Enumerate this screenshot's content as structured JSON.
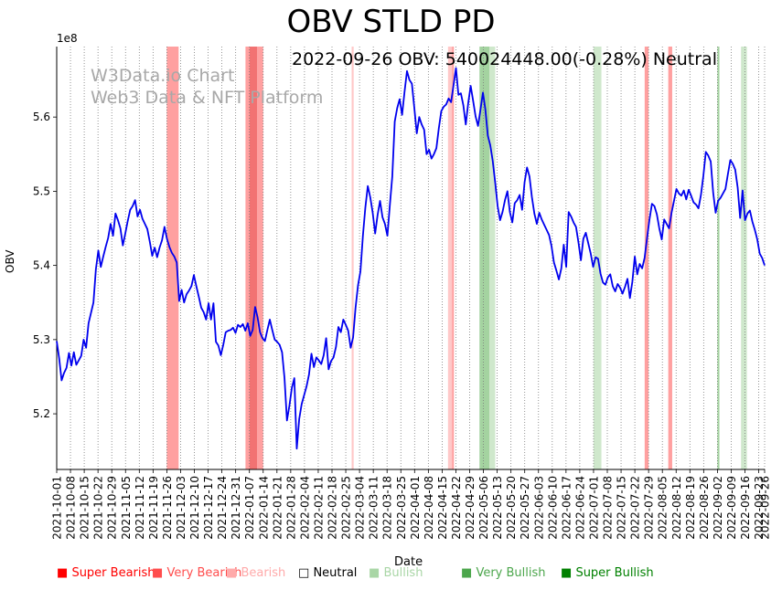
{
  "chart_data": {
    "type": "line",
    "title": "OBV STLD PD",
    "latest_label": "2022-09-26 OBV: 540024448.00(-0.28%) Neutral",
    "watermark": [
      "W3Data.io Chart",
      "Web3 Data & NFT Platform"
    ],
    "xlabel": "Date",
    "ylabel": "OBV",
    "y_scale_label": "1e8",
    "ylim": [
      5.125,
      5.695
    ],
    "y_ticks": [
      5.2,
      5.3,
      5.4,
      5.5,
      5.6
    ],
    "y_tick_labels": [
      "5.2",
      "5.3",
      "5.4",
      "5.5",
      "5.6"
    ],
    "x_range": [
      "2021-10-01",
      "2022-09-26"
    ],
    "x_tick_labels": [
      "2021-10-01",
      "2021-10-08",
      "2021-10-15",
      "2021-10-22",
      "2021-10-29",
      "2021-11-05",
      "2021-11-12",
      "2021-11-19",
      "2021-11-26",
      "2021-12-03",
      "2021-12-10",
      "2021-12-17",
      "2021-12-24",
      "2021-12-31",
      "2022-01-07",
      "2022-01-14",
      "2022-01-21",
      "2022-01-28",
      "2022-02-04",
      "2022-02-11",
      "2022-02-18",
      "2022-02-25",
      "2022-03-04",
      "2022-03-11",
      "2022-03-18",
      "2022-03-25",
      "2022-04-01",
      "2022-04-08",
      "2022-04-15",
      "2022-04-22",
      "2022-04-29",
      "2022-05-06",
      "2022-05-13",
      "2022-05-20",
      "2022-05-27",
      "2022-06-03",
      "2022-06-10",
      "2022-06-17",
      "2022-06-24",
      "2022-07-01",
      "2022-07-08",
      "2022-07-15",
      "2022-07-22",
      "2022-07-29",
      "2022-08-05",
      "2022-08-12",
      "2022-08-19",
      "2022-08-26",
      "2022-09-02",
      "2022-09-09",
      "2022-09-16",
      "2022-09-23",
      "2022-09-26"
    ],
    "series": [
      {
        "name": "OBV",
        "color": "#0000ee",
        "y": [
          5.298,
          5.275,
          5.245,
          5.255,
          5.262,
          5.282,
          5.265,
          5.283,
          5.266,
          5.272,
          5.278,
          5.3,
          5.289,
          5.322,
          5.336,
          5.35,
          5.395,
          5.42,
          5.398,
          5.412,
          5.425,
          5.437,
          5.456,
          5.44,
          5.47,
          5.461,
          5.45,
          5.427,
          5.443,
          5.46,
          5.475,
          5.48,
          5.488,
          5.466,
          5.475,
          5.463,
          5.456,
          5.449,
          5.432,
          5.413,
          5.424,
          5.411,
          5.424,
          5.434,
          5.452,
          5.436,
          5.425,
          5.417,
          5.412,
          5.404,
          5.352,
          5.367,
          5.35,
          5.361,
          5.366,
          5.372,
          5.387,
          5.372,
          5.358,
          5.343,
          5.337,
          5.327,
          5.349,
          5.327,
          5.349,
          5.297,
          5.292,
          5.279,
          5.293,
          5.31,
          5.312,
          5.313,
          5.316,
          5.309,
          5.32,
          5.317,
          5.321,
          5.312,
          5.322,
          5.305,
          5.313,
          5.344,
          5.33,
          5.31,
          5.302,
          5.298,
          5.313,
          5.327,
          5.313,
          5.3,
          5.297,
          5.293,
          5.283,
          5.248,
          5.191,
          5.211,
          5.235,
          5.248,
          5.153,
          5.193,
          5.213,
          5.225,
          5.237,
          5.253,
          5.281,
          5.263,
          5.276,
          5.272,
          5.267,
          5.279,
          5.302,
          5.26,
          5.271,
          5.276,
          5.29,
          5.317,
          5.31,
          5.327,
          5.32,
          5.312,
          5.289,
          5.303,
          5.343,
          5.373,
          5.392,
          5.44,
          5.478,
          5.507,
          5.492,
          5.471,
          5.443,
          5.468,
          5.487,
          5.465,
          5.456,
          5.44,
          5.481,
          5.52,
          5.594,
          5.612,
          5.624,
          5.603,
          5.634,
          5.662,
          5.65,
          5.645,
          5.612,
          5.578,
          5.6,
          5.59,
          5.583,
          5.55,
          5.556,
          5.544,
          5.55,
          5.558,
          5.585,
          5.608,
          5.614,
          5.617,
          5.625,
          5.62,
          5.643,
          5.666,
          5.63,
          5.632,
          5.616,
          5.59,
          5.619,
          5.642,
          5.622,
          5.601,
          5.588,
          5.61,
          5.633,
          5.61,
          5.575,
          5.562,
          5.541,
          5.512,
          5.48,
          5.461,
          5.472,
          5.488,
          5.5,
          5.472,
          5.458,
          5.484,
          5.488,
          5.495,
          5.475,
          5.512,
          5.532,
          5.52,
          5.492,
          5.47,
          5.456,
          5.471,
          5.462,
          5.455,
          5.448,
          5.441,
          5.426,
          5.404,
          5.393,
          5.381,
          5.396,
          5.428,
          5.398,
          5.472,
          5.466,
          5.458,
          5.452,
          5.431,
          5.407,
          5.436,
          5.444,
          5.43,
          5.416,
          5.398,
          5.411,
          5.409,
          5.389,
          5.377,
          5.374,
          5.384,
          5.388,
          5.372,
          5.365,
          5.375,
          5.37,
          5.362,
          5.371,
          5.382,
          5.356,
          5.378,
          5.412,
          5.388,
          5.402,
          5.396,
          5.41,
          5.437,
          5.462,
          5.483,
          5.48,
          5.469,
          5.45,
          5.435,
          5.462,
          5.456,
          5.45,
          5.471,
          5.487,
          5.503,
          5.497,
          5.494,
          5.501,
          5.489,
          5.502,
          5.494,
          5.485,
          5.482,
          5.477,
          5.495,
          5.521,
          5.553,
          5.548,
          5.54,
          5.498,
          5.471,
          5.487,
          5.491,
          5.497,
          5.503,
          5.523,
          5.542,
          5.537,
          5.529,
          5.505,
          5.464,
          5.501,
          5.461,
          5.47,
          5.474,
          5.459,
          5.448,
          5.435,
          5.416,
          5.41,
          5.4
        ]
      }
    ],
    "signal_bands": [
      {
        "start": "2021-11-26",
        "end": "2021-12-02",
        "level": "Very Bearish"
      },
      {
        "start": "2022-01-05",
        "end": "2022-01-07",
        "level": "Very Bearish"
      },
      {
        "start": "2022-01-07",
        "end": "2022-01-11",
        "level": "Super Bearish"
      },
      {
        "start": "2022-01-11",
        "end": "2022-01-14",
        "level": "Very Bearish"
      },
      {
        "start": "2022-02-28",
        "end": "2022-03-01",
        "level": "Bearish"
      },
      {
        "start": "2022-04-18",
        "end": "2022-04-20",
        "level": "Bearish"
      },
      {
        "start": "2022-04-20",
        "end": "2022-04-21",
        "level": "Very Bearish"
      },
      {
        "start": "2022-05-04",
        "end": "2022-05-09",
        "level": "Very Bullish"
      },
      {
        "start": "2022-05-09",
        "end": "2022-05-12",
        "level": "Bullish"
      },
      {
        "start": "2022-07-01",
        "end": "2022-07-05",
        "level": "Bullish"
      },
      {
        "start": "2022-07-27",
        "end": "2022-07-29",
        "level": "Very Bearish"
      },
      {
        "start": "2022-08-08",
        "end": "2022-08-10",
        "level": "Very Bearish"
      },
      {
        "start": "2022-09-02",
        "end": "2022-09-03",
        "level": "Very Bullish"
      },
      {
        "start": "2022-09-14",
        "end": "2022-09-17",
        "level": "Bullish"
      }
    ],
    "legend": [
      {
        "label": "Super Bearish",
        "color": "#ff0000",
        "symbol": "■"
      },
      {
        "label": "Very Bearish",
        "color": "#ff4d4d",
        "symbol": "■"
      },
      {
        "label": "Bearish",
        "color": "#ffaaaa",
        "symbol": "■"
      },
      {
        "label": "Neutral",
        "color": "#000000",
        "symbol": "□"
      },
      {
        "label": "Bullish",
        "color": "#a9d6a6",
        "symbol": "■"
      },
      {
        "label": "Very Bullish",
        "color": "#4ca64c",
        "symbol": "■"
      },
      {
        "label": "Super Bullish",
        "color": "#008000",
        "symbol": "■"
      }
    ],
    "band_colors": {
      "Super Bearish": "#f27272",
      "Very Bearish": "#ffa0a0",
      "Bearish": "#ffc8c8",
      "Bullish": "#cfe8cc",
      "Very Bullish": "#a4d3a0",
      "Super Bullish": "#66b266"
    }
  }
}
